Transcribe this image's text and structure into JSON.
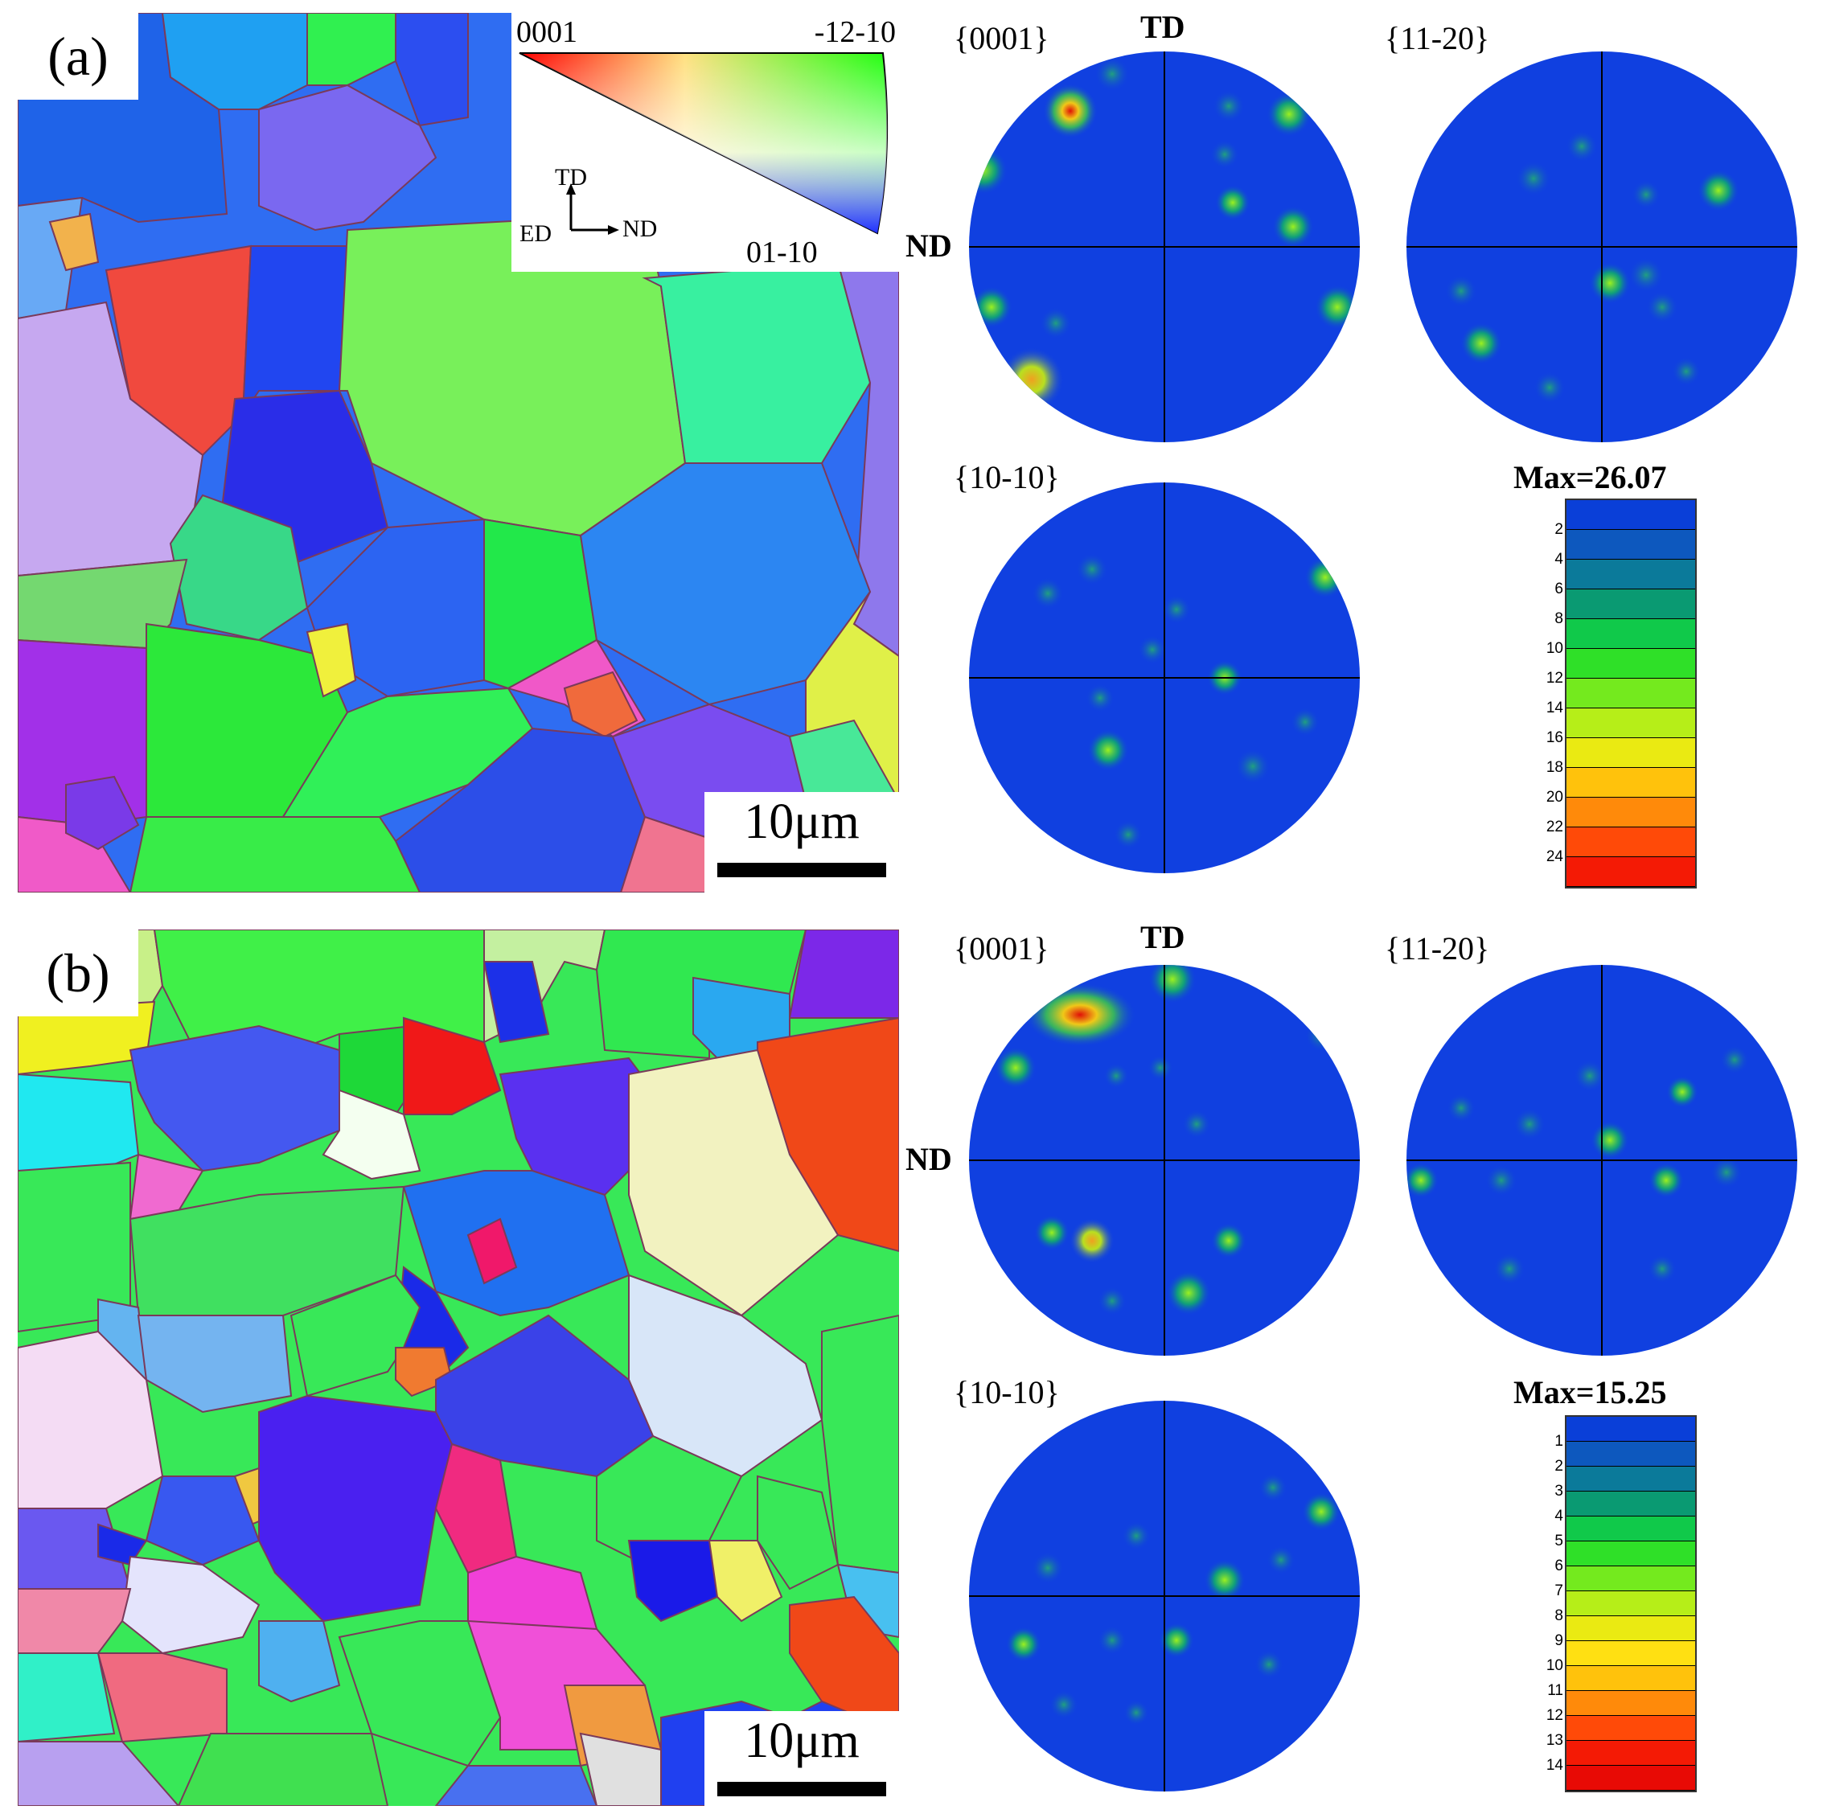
{
  "figure": {
    "panels": [
      {
        "label": "(a)",
        "scale_bar": "10μm",
        "key": {
          "top_left": "0001",
          "top_right": "-12-10",
          "bottom": "01-10",
          "axis_up": "TD",
          "axis_left": "ED",
          "axis_right": "ND"
        },
        "pole_figures": [
          {
            "title": "{0001}",
            "top_label": "TD",
            "left_label": "ND"
          },
          {
            "title": "{11-20}"
          },
          {
            "title": "{10-10}"
          }
        ],
        "legend": {
          "max_label": "Max=26.07",
          "ticks": [
            "2",
            "4",
            "6",
            "8",
            "10",
            "12",
            "14",
            "16",
            "18",
            "20",
            "22",
            "24"
          ],
          "colors": [
            "#0a3fd8",
            "#0d58be",
            "#0b7a9a",
            "#0a9a72",
            "#10c94a",
            "#2fe028",
            "#74ea1e",
            "#b6ee18",
            "#eaea12",
            "#ffc20c",
            "#ff8a0a",
            "#ff4a08",
            "#f41a05"
          ]
        }
      },
      {
        "label": "(b)",
        "scale_bar": "10μm",
        "pole_figures": [
          {
            "title": "{0001}",
            "top_label": "TD",
            "left_label": "ND"
          },
          {
            "title": "{11-20}"
          },
          {
            "title": "{10-10}"
          }
        ],
        "legend": {
          "max_label": "Max=15.25",
          "ticks": [
            "1",
            "2",
            "3",
            "4",
            "5",
            "6",
            "7",
            "8",
            "9",
            "10",
            "11",
            "12",
            "13",
            "14"
          ],
          "colors": [
            "#0a3fd8",
            "#0d58be",
            "#0b7a9a",
            "#0a9a72",
            "#10c94a",
            "#2fe028",
            "#74ea1e",
            "#b6ee18",
            "#eaea12",
            "#ffe012",
            "#ffc20c",
            "#ff8a0a",
            "#ff4a08",
            "#f41a05",
            "#e80a05"
          ]
        }
      }
    ]
  }
}
